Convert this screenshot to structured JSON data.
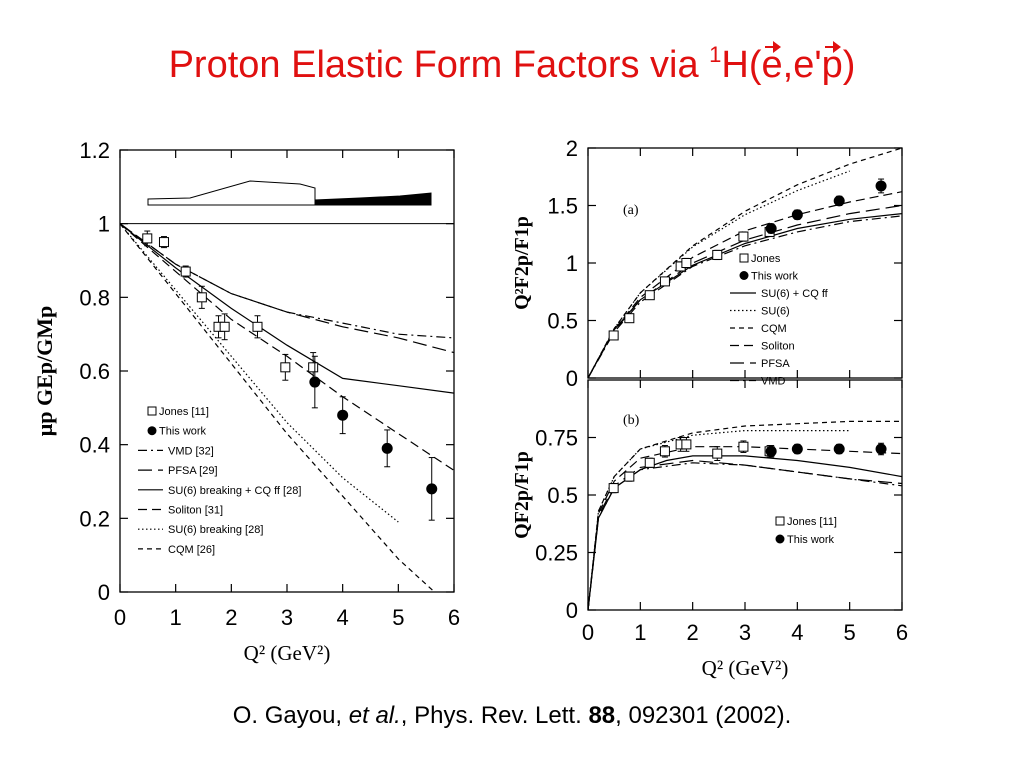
{
  "slide": {
    "title_main": "Proton Elastic Form Factors via ",
    "title_sup": "1",
    "title_h": "H(",
    "title_e": "e",
    "title_comma": ",e'",
    "title_p": "p",
    "title_close": ")",
    "citation_authors": "O. Gayou, ",
    "citation_etal": "et al.",
    "citation_journal": ", Phys. Rev. Lett. ",
    "citation_volume": "88",
    "citation_rest": ", 092301 (2002)."
  },
  "colors": {
    "title": "#e01010",
    "axes": "#000000"
  },
  "chart_data": [
    {
      "type": "scatter",
      "xlabel": "Q² (GeV²)",
      "ylabel": "μp GEp/GMp",
      "xlim": [
        0,
        6
      ],
      "ylim": [
        0,
        1.2
      ],
      "xticks": [
        0,
        1,
        2,
        3,
        4,
        5,
        6
      ],
      "yticks": [
        0,
        0.2,
        0.4,
        0.6,
        0.8,
        1,
        1.2
      ],
      "xtick_labels": [
        "0",
        "1",
        "2",
        "3",
        "4",
        "5",
        "6"
      ],
      "ytick_labels": [
        "0",
        "0.2",
        "0.4",
        "0.6",
        "0.8",
        "1",
        "1.2"
      ],
      "legend_position": "bottom-left",
      "series": [
        {
          "name": "Jones [11]",
          "marker": "open-square",
          "x": [
            0.49,
            0.79,
            1.18,
            1.47,
            1.77,
            1.88,
            2.47,
            2.97,
            3.47
          ],
          "y": [
            0.96,
            0.95,
            0.87,
            0.8,
            0.72,
            0.72,
            0.72,
            0.61,
            0.61
          ],
          "err": [
            0.02,
            0.015,
            0.015,
            0.03,
            0.03,
            0.035,
            0.03,
            0.035,
            0.04
          ]
        },
        {
          "name": "This work",
          "marker": "filled-circle",
          "x": [
            3.5,
            4.0,
            4.8,
            5.6
          ],
          "y": [
            0.57,
            0.48,
            0.39,
            0.28
          ],
          "err": [
            0.07,
            0.05,
            0.05,
            0.085
          ]
        },
        {
          "name": "VMD [32]",
          "style": "dashdot",
          "x": [
            0,
            1,
            2,
            3,
            4,
            5,
            6
          ],
          "y": [
            1.0,
            0.89,
            0.81,
            0.76,
            0.73,
            0.7,
            0.69
          ]
        },
        {
          "name": "PFSA [29]",
          "style": "longdash",
          "x": [
            0,
            1,
            2,
            3,
            4,
            5,
            6
          ],
          "y": [
            1.0,
            0.89,
            0.81,
            0.76,
            0.72,
            0.69,
            0.65
          ]
        },
        {
          "name": "SU(6) breaking + CQ ff [28]",
          "style": "solid",
          "x": [
            0,
            1,
            2,
            3,
            4,
            5,
            6
          ],
          "y": [
            1.0,
            0.88,
            0.77,
            0.67,
            0.58,
            0.56,
            0.54
          ]
        },
        {
          "name": "Soliton [31]",
          "style": "dashed2",
          "x": [
            0,
            1,
            2,
            3,
            4,
            5,
            6
          ],
          "y": [
            1.0,
            0.87,
            0.74,
            0.64,
            0.53,
            0.43,
            0.33
          ]
        },
        {
          "name": "SU(6) breaking [28]",
          "style": "dotted",
          "x": [
            0,
            1,
            2,
            3,
            4,
            5
          ],
          "y": [
            1.0,
            0.82,
            0.64,
            0.46,
            0.31,
            0.19
          ]
        },
        {
          "name": "CQM [26]",
          "style": "shortdash",
          "x": [
            0,
            1,
            2,
            3,
            4,
            5,
            5.65
          ],
          "y": [
            1.0,
            0.81,
            0.62,
            0.43,
            0.26,
            0.09,
            0.0
          ]
        }
      ]
    },
    {
      "type": "scatter",
      "panel_label": "(a)",
      "ylabel": "Q²F2p/F1p",
      "xlim": [
        0,
        6
      ],
      "ylim": [
        0,
        2
      ],
      "xticks": [
        0,
        1,
        2,
        3,
        4,
        5,
        6
      ],
      "yticks": [
        0,
        0.5,
        1,
        1.5,
        2
      ],
      "ytick_labels": [
        "0",
        "0.5",
        "1",
        "1.5",
        "2"
      ],
      "legend_position": "bottom-right",
      "series": [
        {
          "name": "Jones",
          "marker": "open-square",
          "x": [
            0.49,
            0.79,
            1.18,
            1.47,
            1.77,
            1.88,
            2.47,
            2.97,
            3.47
          ],
          "y": [
            0.37,
            0.52,
            0.72,
            0.84,
            0.97,
            1.0,
            1.07,
            1.23,
            1.27
          ],
          "err": [
            0.02,
            0.02,
            0.02,
            0.03,
            0.04,
            0.04,
            0.04,
            0.04,
            0.04
          ]
        },
        {
          "name": "This work",
          "marker": "filled-circle",
          "x": [
            3.5,
            4.0,
            4.8,
            5.6
          ],
          "y": [
            1.3,
            1.42,
            1.54,
            1.67
          ],
          "err": [
            0.04,
            0.04,
            0.04,
            0.06
          ]
        },
        {
          "name": "SU(6) + CQ ff",
          "style": "solid",
          "x": [
            0,
            0.5,
            1,
            2,
            3,
            4,
            5,
            6
          ],
          "y": [
            0,
            0.42,
            0.68,
            0.98,
            1.17,
            1.3,
            1.38,
            1.43
          ]
        },
        {
          "name": "SU(6)",
          "style": "dotted",
          "x": [
            0,
            0.5,
            1,
            2,
            3,
            4,
            5
          ],
          "y": [
            0,
            0.43,
            0.74,
            1.14,
            1.42,
            1.63,
            1.8
          ]
        },
        {
          "name": "CQM",
          "style": "shortdash",
          "x": [
            0,
            0.5,
            1,
            2,
            3,
            4,
            5,
            6
          ],
          "y": [
            0,
            0.43,
            0.74,
            1.15,
            1.45,
            1.68,
            1.86,
            2.0
          ]
        },
        {
          "name": "Soliton",
          "style": "dashed2",
          "x": [
            0,
            0.5,
            1,
            2,
            3,
            4,
            5,
            6
          ],
          "y": [
            0,
            0.42,
            0.7,
            1.05,
            1.28,
            1.42,
            1.53,
            1.62
          ]
        },
        {
          "name": "PFSA",
          "style": "longdash",
          "x": [
            0,
            0.5,
            1,
            2,
            3,
            4,
            5,
            6
          ],
          "y": [
            0,
            0.41,
            0.68,
            1.0,
            1.2,
            1.33,
            1.43,
            1.5
          ]
        },
        {
          "name": "VMD",
          "style": "dashdot",
          "x": [
            0,
            0.5,
            1,
            2,
            3,
            4,
            5,
            6
          ],
          "y": [
            0,
            0.4,
            0.66,
            0.97,
            1.15,
            1.27,
            1.36,
            1.41
          ]
        }
      ]
    },
    {
      "type": "scatter",
      "panel_label": "(b)",
      "xlabel": "Q² (GeV²)",
      "ylabel": "QF2p/F1p",
      "xlim": [
        0,
        6
      ],
      "ylim": [
        0,
        1
      ],
      "xticks": [
        0,
        1,
        2,
        3,
        4,
        5,
        6
      ],
      "xtick_labels": [
        "0",
        "1",
        "2",
        "3",
        "4",
        "5",
        "6"
      ],
      "yticks": [
        0,
        0.25,
        0.5,
        0.75
      ],
      "ytick_labels": [
        "0",
        "0.25",
        "0.5",
        "0.75"
      ],
      "legend_position": "bottom-right",
      "series": [
        {
          "name": "Jones [11]",
          "marker": "open-square",
          "x": [
            0.49,
            0.79,
            1.18,
            1.47,
            1.77,
            1.88,
            2.47,
            2.97,
            3.47
          ],
          "y": [
            0.53,
            0.58,
            0.64,
            0.69,
            0.72,
            0.72,
            0.68,
            0.71,
            0.69
          ],
          "err": [
            0.02,
            0.02,
            0.02,
            0.025,
            0.03,
            0.03,
            0.03,
            0.025,
            0.025
          ]
        },
        {
          "name": "This work",
          "marker": "filled-circle",
          "x": [
            3.5,
            4.0,
            4.8,
            5.6
          ],
          "y": [
            0.69,
            0.7,
            0.7,
            0.7
          ],
          "err": [
            0.025,
            0.02,
            0.02,
            0.025
          ]
        },
        {
          "style": "solid",
          "x": [
            0,
            0.2,
            0.5,
            1,
            1.5,
            2,
            3,
            4,
            5,
            6
          ],
          "y": [
            0,
            0.4,
            0.53,
            0.61,
            0.65,
            0.67,
            0.67,
            0.65,
            0.62,
            0.58
          ]
        },
        {
          "style": "dotted",
          "x": [
            0,
            0.2,
            0.5,
            1,
            2,
            3,
            4,
            5
          ],
          "y": [
            0,
            0.43,
            0.58,
            0.7,
            0.76,
            0.78,
            0.78,
            0.78
          ]
        },
        {
          "style": "shortdash",
          "x": [
            0,
            0.2,
            0.5,
            1,
            2,
            3,
            4,
            5,
            6
          ],
          "y": [
            0,
            0.43,
            0.58,
            0.7,
            0.77,
            0.8,
            0.81,
            0.82,
            0.82
          ]
        },
        {
          "style": "dashed2",
          "x": [
            0,
            0.2,
            0.5,
            1,
            2,
            3,
            4,
            5,
            6
          ],
          "y": [
            0,
            0.42,
            0.56,
            0.66,
            0.71,
            0.71,
            0.7,
            0.69,
            0.68
          ]
        },
        {
          "style": "longdash",
          "x": [
            0,
            0.2,
            0.5,
            1,
            2,
            3,
            4,
            5,
            6
          ],
          "y": [
            0,
            0.41,
            0.54,
            0.62,
            0.65,
            0.63,
            0.6,
            0.57,
            0.55
          ]
        },
        {
          "style": "dashdot",
          "x": [
            0,
            0.2,
            0.5,
            1,
            2,
            3,
            4,
            5,
            6
          ],
          "y": [
            0,
            0.4,
            0.53,
            0.61,
            0.64,
            0.63,
            0.6,
            0.57,
            0.54
          ]
        }
      ]
    }
  ]
}
